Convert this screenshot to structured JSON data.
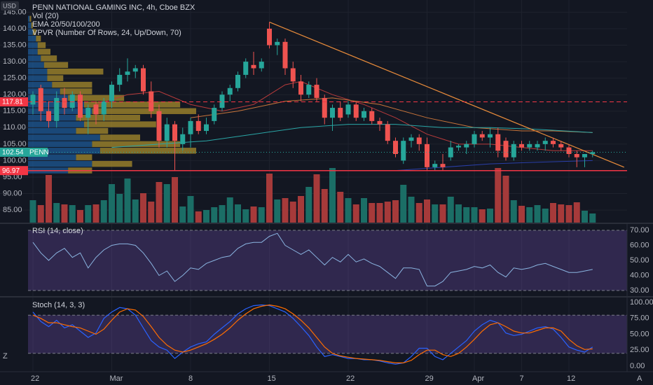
{
  "corner_labels": [
    "Z",
    "A"
  ],
  "chart_data": [
    {
      "type": "candlestick",
      "title": "PENN NATIONAL GAMING INC, 4h, Cboe BZX",
      "currency": "USD",
      "indicators": [
        "Vol (20)",
        "EMA 20/50/100/200",
        "VPVR (Number Of Rows, 24, Up/Down, 70)"
      ],
      "categories": [
        "22",
        null,
        null,
        null,
        null,
        null,
        null,
        null,
        null,
        null,
        "Mar",
        null,
        null,
        null,
        null,
        null,
        null,
        null,
        null,
        null,
        "8",
        null,
        null,
        null,
        null,
        null,
        null,
        null,
        null,
        null,
        "15",
        null,
        null,
        null,
        null,
        null,
        null,
        null,
        null,
        null,
        "22",
        null,
        null,
        null,
        null,
        null,
        null,
        null,
        null,
        null,
        "29",
        null,
        null,
        null,
        null,
        null,
        "Apr",
        null,
        null,
        null,
        null,
        null,
        "7",
        null,
        null,
        null,
        null,
        null,
        "12",
        null,
        null,
        null
      ],
      "open": [
        117,
        122,
        115,
        112,
        119,
        116,
        120,
        113,
        117,
        114,
        118,
        123,
        126,
        127,
        128,
        121,
        115,
        106,
        111,
        105,
        108,
        112,
        109,
        112,
        116,
        120,
        122,
        126,
        129,
        128,
        140,
        135,
        136,
        128,
        124,
        120,
        123,
        119,
        113,
        116,
        114,
        117,
        113,
        115,
        112,
        111,
        106,
        100,
        106,
        107,
        105,
        98,
        99,
        101,
        104,
        104,
        105,
        108,
        107,
        108,
        106,
        101,
        105,
        104,
        104,
        105,
        106,
        105,
        104,
        102,
        101,
        102
      ],
      "high": [
        121,
        123,
        118,
        121,
        122,
        121,
        121,
        117,
        118,
        119,
        124,
        128,
        131,
        129,
        129,
        124,
        117,
        113,
        112,
        110,
        113,
        114,
        113,
        117,
        121,
        123,
        127,
        131,
        133,
        131,
        142,
        137,
        137,
        130,
        126,
        124,
        125,
        120,
        117,
        118,
        118,
        118,
        116,
        116,
        113,
        112,
        107,
        107,
        108,
        108,
        107,
        100,
        102,
        106,
        105,
        106,
        109,
        109,
        110,
        110,
        107,
        106,
        106,
        106,
        106,
        107,
        107,
        106,
        105,
        103,
        102,
        103
      ],
      "low": [
        114,
        112,
        110,
        110,
        114,
        115,
        112,
        108,
        111,
        112,
        116,
        121,
        124,
        125,
        120,
        113,
        104,
        104,
        97,
        103,
        104,
        108,
        108,
        111,
        115,
        118,
        121,
        125,
        126,
        127,
        134,
        132,
        126,
        122,
        118,
        119,
        118,
        111,
        109,
        112,
        113,
        112,
        112,
        111,
        109,
        105,
        101,
        99,
        104,
        103,
        97,
        97,
        97,
        100,
        103,
        102,
        104,
        106,
        104,
        101,
        100,
        100,
        103,
        103,
        103,
        103,
        104,
        103,
        101,
        98,
        98,
        101
      ],
      "close": [
        120,
        115,
        112,
        119,
        116,
        120,
        113,
        116,
        114,
        118,
        123,
        126,
        127,
        128,
        121,
        115,
        106,
        111,
        106,
        108,
        112,
        109,
        111,
        116,
        120,
        122,
        126,
        130,
        128,
        130,
        135,
        136,
        128,
        124,
        120,
        123,
        119,
        113,
        116,
        113,
        117,
        113,
        115,
        112,
        111,
        106,
        102,
        106,
        107,
        105,
        98,
        99,
        98,
        104,
        104.5,
        105,
        108,
        107,
        108,
        103,
        101,
        105,
        104,
        105,
        105,
        106,
        105,
        104,
        102,
        101,
        102,
        102.54
      ],
      "up_color": "#26a69a",
      "down_color": "#ef5350",
      "ylim": [
        81.2,
        148.7
      ],
      "yticks": [
        {
          "value": 85,
          "label": "85.00"
        },
        {
          "value": 90,
          "label": "90.00"
        },
        {
          "value": 95,
          "label": "95.00"
        },
        {
          "value": 100,
          "label": "100.00"
        },
        {
          "value": 105,
          "label": "105.00"
        },
        {
          "value": 110,
          "label": "110.00"
        },
        {
          "value": 115,
          "label": "115.00"
        },
        {
          "value": 120,
          "label": "120.00"
        },
        {
          "value": 125,
          "label": "125.00"
        },
        {
          "value": 130,
          "label": "130.00"
        },
        {
          "value": 135,
          "label": "135.00"
        },
        {
          "value": 140,
          "label": "140.00"
        },
        {
          "value": 145,
          "label": "145.00"
        }
      ],
      "grid": true,
      "ema": [
        {
          "color": "#b83b3b",
          "x": [
            8,
            12,
            16,
            20,
            24,
            28,
            32,
            34,
            38,
            42,
            46,
            50,
            54,
            58,
            62,
            66,
            71
          ],
          "values": [
            117,
            120,
            121,
            117,
            115,
            117,
            123,
            124,
            120,
            117,
            113,
            108,
            105,
            105,
            104,
            103,
            103
          ]
        },
        {
          "color": "#c7743a",
          "x": [
            20,
            26,
            32,
            38,
            44,
            50,
            56,
            62,
            66,
            71
          ],
          "values": [
            113,
            115,
            118,
            119,
            117,
            113,
            110,
            109,
            109,
            108.5
          ]
        },
        {
          "color": "#2aa6a6",
          "x": [
            10,
            16,
            22,
            28,
            34,
            40,
            46,
            52,
            58,
            64,
            71
          ],
          "values": [
            104,
            105,
            106,
            108,
            110,
            111,
            111,
            110,
            110,
            109.5,
            108.5
          ]
        },
        {
          "color": "#2a3fa8",
          "x": [
            46,
            52,
            58,
            64,
            71
          ],
          "values": [
            97,
            98,
            99,
            99.5,
            100
          ]
        }
      ],
      "trendline": {
        "color": "#e68a3a",
        "x": [
          30,
          75
        ],
        "values": [
          142,
          98
        ]
      },
      "price_lines": [
        {
          "value": 117.81,
          "color": "#f23645",
          "style": "dashed"
        },
        {
          "value": 102.54,
          "color": "#26a69a",
          "style": "dotted",
          "name": "PENN"
        },
        {
          "value": 96.97,
          "color": "#f23645",
          "style": "solid"
        }
      ],
      "vpvr": {
        "bins": [
          96,
          98,
          100,
          102,
          104,
          106,
          108,
          110,
          112,
          114,
          116,
          118,
          120,
          122,
          124,
          126,
          128,
          130,
          132,
          134,
          136,
          138,
          140,
          142,
          144
        ],
        "up": [
          25,
          40,
          30,
          45,
          40,
          45,
          30,
          35,
          30,
          40,
          35,
          25,
          20,
          15,
          12,
          12,
          10,
          8,
          6,
          6,
          5,
          3,
          2,
          1
        ],
        "down": [
          15,
          25,
          10,
          60,
          55,
          25,
          20,
          45,
          40,
          65,
          60,
          35,
          20,
          25,
          10,
          35,
          15,
          10,
          8,
          5,
          3,
          2,
          1,
          1
        ],
        "up_color": "#1e5a96",
        "down_color": "#a88c2c"
      }
    },
    {
      "type": "bar",
      "title": "Vol (20)",
      "values": [
        3.2,
        2.5,
        6.8,
        2.8,
        2.6,
        2.5,
        1.8,
        2.5,
        2.6,
        3.2,
        5.5,
        4.1,
        6.3,
        3.3,
        4.2,
        3.0,
        5.8,
        5.5,
        6.5,
        2.3,
        3.8,
        1.6,
        1.8,
        2.2,
        2.5,
        3.6,
        2.6,
        1.9,
        2.3,
        2.2,
        7.0,
        3.3,
        3.5,
        3.0,
        3.8,
        5.1,
        6.9,
        4.8,
        7.8,
        4.4,
        3.5,
        2.6,
        3.5,
        2.8,
        2.8,
        3.0,
        3.2,
        5.4,
        3.7,
        2.8,
        3.3,
        2.6,
        2.6,
        3.7,
        2.6,
        2.2,
        2.2,
        1.9,
        2.0,
        7.8,
        6.7,
        3.2,
        2.4,
        2.2,
        2.5,
        2.0,
        2.8,
        2.6,
        2.5,
        2.9,
        1.7,
        1.3
      ],
      "up_color": "#1b6e66",
      "down_color": "#a63a3a",
      "ylim": [
        0,
        31.8
      ]
    },
    {
      "type": "line",
      "title": "RSI (14, close)",
      "color": "#8ab4e0",
      "values": [
        62,
        55,
        50,
        55,
        58,
        52,
        55,
        45,
        52,
        57,
        60,
        61,
        61,
        60,
        55,
        48,
        40,
        43,
        36,
        40,
        45,
        44,
        48,
        50,
        52,
        53,
        58,
        61,
        62,
        62,
        66,
        68,
        60,
        57,
        54,
        57,
        52,
        47,
        52,
        49,
        54,
        49,
        51,
        48,
        46,
        42,
        38,
        45,
        45,
        44,
        33,
        33,
        36,
        42,
        43,
        44,
        46,
        45,
        47,
        42,
        39,
        45,
        44,
        45,
        47,
        48,
        46,
        44,
        42,
        42,
        43,
        44
      ],
      "ylim": [
        26.3,
        74.2
      ],
      "yticks": [
        {
          "value": 30,
          "label": "30.00"
        },
        {
          "value": 40,
          "label": "40.00"
        },
        {
          "value": 50,
          "label": "50.00"
        },
        {
          "value": 60,
          "label": "60.00"
        },
        {
          "value": 70,
          "label": "70.00"
        }
      ],
      "band": [
        30,
        70
      ]
    },
    {
      "type": "line",
      "title": "Stoch (14, 3, 3)",
      "series": [
        {
          "color": "#2962ff",
          "values": [
            85,
            70,
            62,
            72,
            60,
            65,
            55,
            45,
            52,
            75,
            85,
            92,
            90,
            80,
            60,
            40,
            30,
            25,
            12,
            22,
            30,
            35,
            38,
            50,
            60,
            70,
            82,
            90,
            95,
            96,
            95,
            90,
            85,
            75,
            62,
            48,
            30,
            15,
            18,
            15,
            12,
            12,
            10,
            10,
            8,
            5,
            3,
            5,
            15,
            28,
            28,
            15,
            10,
            20,
            30,
            40,
            55,
            65,
            72,
            68,
            52,
            48,
            50,
            55,
            60,
            62,
            58,
            45,
            30,
            25,
            22,
            30
          ]
        },
        {
          "color": "#ff6d00",
          "values": [
            80,
            75,
            68,
            68,
            65,
            62,
            60,
            55,
            50,
            58,
            72,
            85,
            90,
            88,
            78,
            62,
            45,
            33,
            25,
            22,
            25,
            30,
            35,
            42,
            50,
            60,
            72,
            82,
            90,
            94,
            96,
            94,
            90,
            82,
            72,
            60,
            45,
            30,
            20,
            16,
            14,
            12,
            11,
            10,
            9,
            7,
            5,
            5,
            9,
            18,
            25,
            25,
            18,
            15,
            20,
            30,
            42,
            55,
            65,
            68,
            62,
            55,
            52,
            52,
            56,
            60,
            60,
            55,
            42,
            32,
            26,
            27
          ]
        }
      ],
      "ylim": [
        -7.7,
        107.7
      ],
      "yticks": [
        {
          "value": 0,
          "label": "0.00"
        },
        {
          "value": 25,
          "label": "25.00"
        },
        {
          "value": 50,
          "label": "50.00"
        },
        {
          "value": 75,
          "label": "75.00"
        },
        {
          "value": 100,
          "label": "100.00"
        }
      ],
      "band": [
        20,
        80
      ]
    }
  ]
}
